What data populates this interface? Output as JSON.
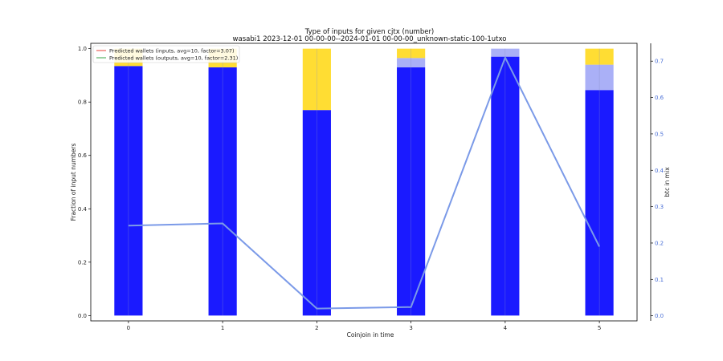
{
  "chart_data": {
    "type": "bar",
    "title": "Type of inputs for given cjtx (number)",
    "subtitle": "wasabi1 2023-12-01 00-00-00--2024-01-01 00-00-00_unknown-static-100-1utxo",
    "xlabel": "Coinjoin in time",
    "ylabel": "Fraction of input numbers",
    "y2label": "btc in mix",
    "categories": [
      "0",
      "1",
      "2",
      "3",
      "4",
      "5"
    ],
    "ylim": [
      -0.02,
      1.02
    ],
    "y2lim": [
      -0.014,
      0.749
    ],
    "yticks": [
      "0.0",
      "0.2",
      "0.4",
      "0.6",
      "0.8",
      "1.0"
    ],
    "y2ticks": [
      "0.0",
      "0.1",
      "0.2",
      "0.3",
      "0.4",
      "0.5",
      "0.6",
      "0.7"
    ],
    "grid": false,
    "legend_position": "top-left",
    "series": [
      {
        "name": "",
        "color": "#1a1aff",
        "values": [
          0.935,
          0.93,
          0.77,
          0.93,
          0.97,
          0.845
        ]
      },
      {
        "name": "",
        "color": "#aab0f7",
        "values": [
          0.0,
          0.0,
          0.0,
          0.035,
          0.03,
          0.095
        ]
      },
      {
        "name": "",
        "color": "#ffdd33",
        "values": [
          0.065,
          0.07,
          0.23,
          0.035,
          0.0,
          0.06
        ]
      }
    ],
    "line": {
      "name": "btc in mix",
      "color": "#7b9ae8",
      "values": [
        0.248,
        0.254,
        0.02,
        0.024,
        0.71,
        0.19
      ]
    },
    "legend": [
      {
        "label": "Predicted wallets (inputs, avg=10, factor=3.07)",
        "color": "#e8403a"
      },
      {
        "label": "Predicted wallets (outputs, avg=10, factor=2.31)",
        "color": "#3aa64a"
      }
    ]
  }
}
